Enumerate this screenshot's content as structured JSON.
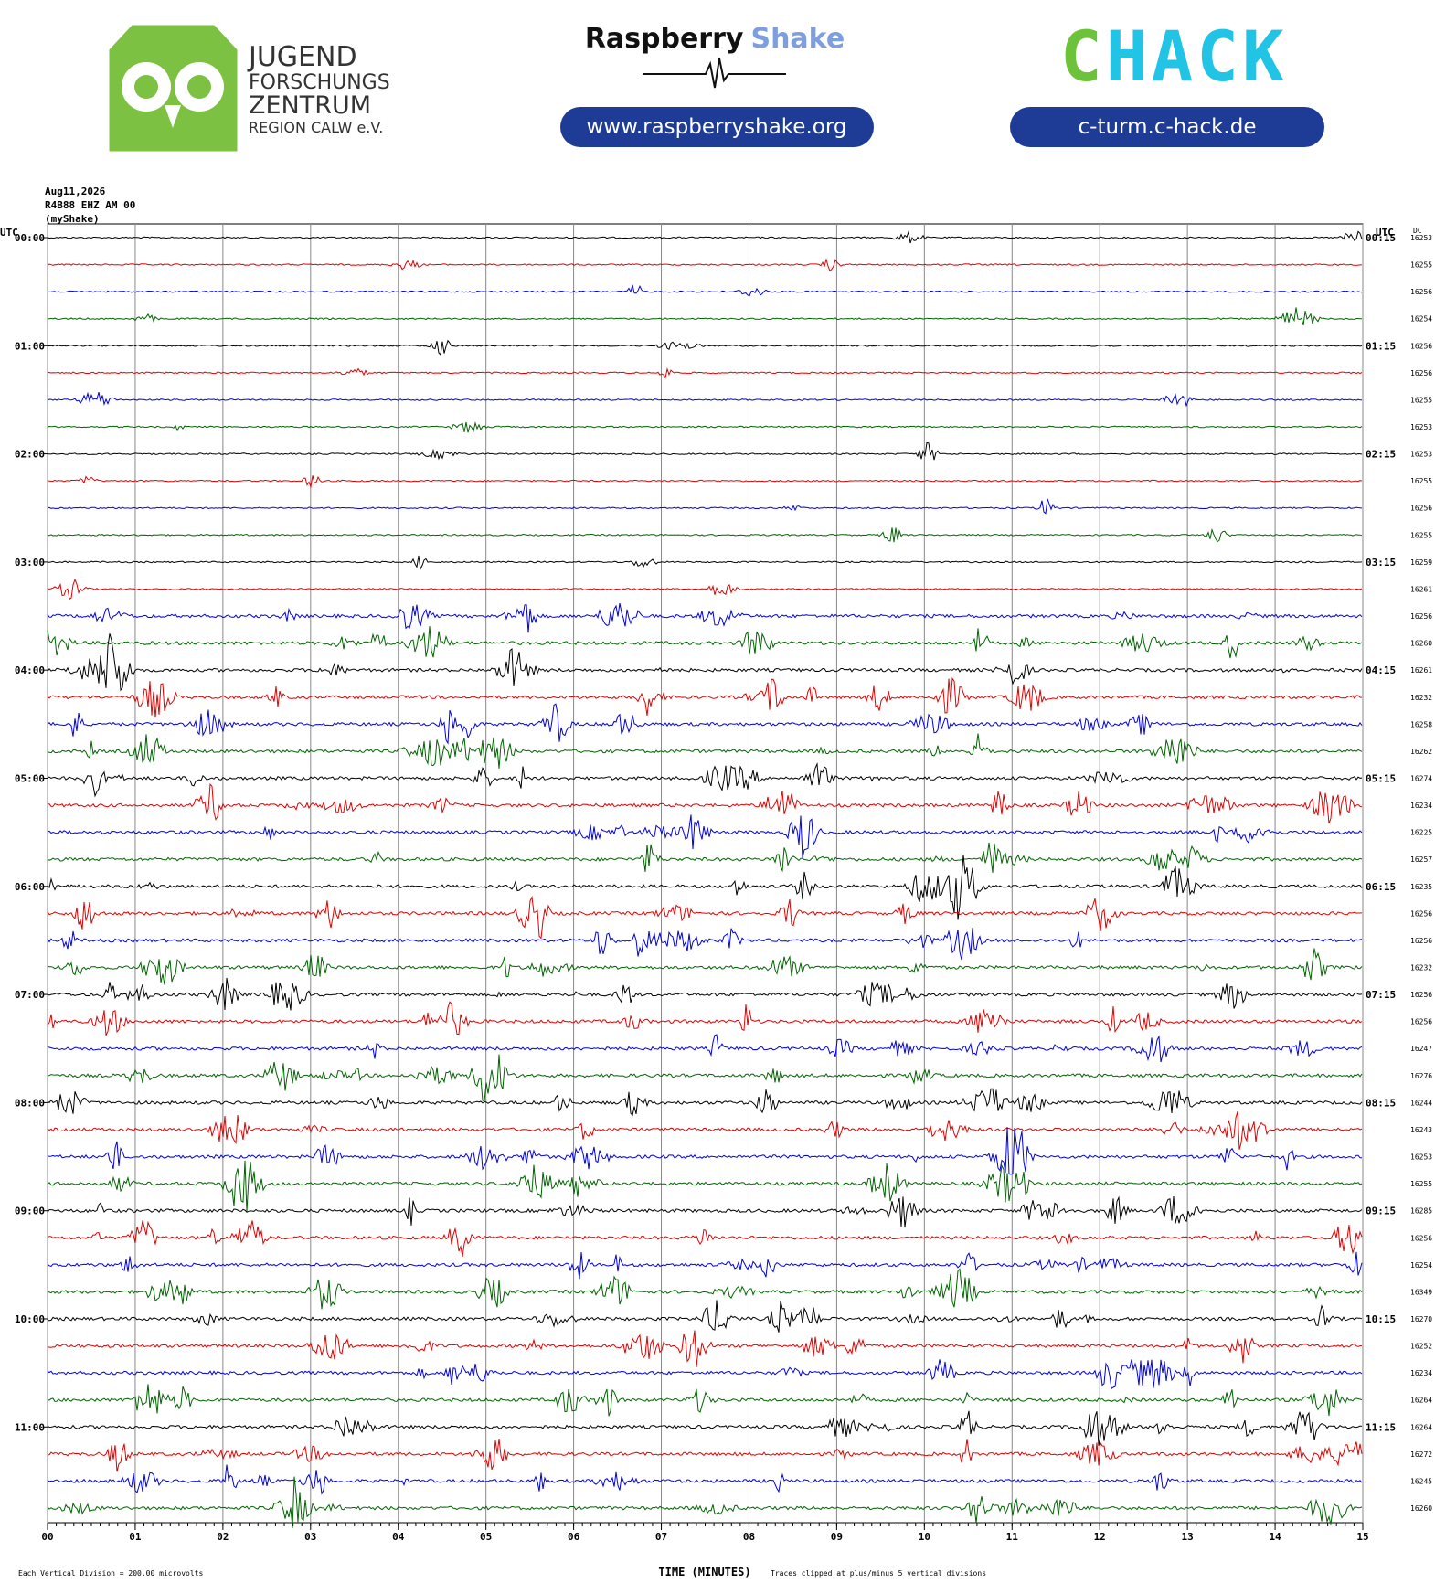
{
  "header": {
    "jfz_lines": [
      "JUGEND",
      "FORSCHUNGS",
      "ZENTRUM",
      "REGION CALW e.V."
    ],
    "rs_name": "Raspberry",
    "rs_name2": "Shake",
    "rs_url": "www.raspberryshake.org",
    "chack_c": "C",
    "chack_rest": "HACK",
    "chack_url": "c-turm.c-hack.de"
  },
  "chart_data": {
    "type": "helicorder",
    "info": [
      "Aug11,2026",
      "R4B88 EHZ AM 00",
      "(myShake)"
    ],
    "left_axis_label": "UTC",
    "right_axis_label": "UTC",
    "dc_label": "DC",
    "left_times": [
      "00:00",
      "01:00",
      "02:00",
      "03:00",
      "04:00",
      "05:00",
      "06:00",
      "07:00",
      "08:00",
      "09:00",
      "10:00",
      "11:00"
    ],
    "right_times": [
      "00:15",
      "01:15",
      "02:15",
      "03:15",
      "04:15",
      "05:15",
      "06:15",
      "07:15",
      "08:15",
      "09:15",
      "10:15",
      "11:15"
    ],
    "dc": [
      16253,
      16255,
      16256,
      16254,
      16256,
      16256,
      16255,
      16253,
      16253,
      16255,
      16256,
      16255,
      16259,
      16261,
      16256,
      16260,
      16261,
      16232,
      16258,
      16262,
      16274,
      16234,
      16225,
      16257,
      16235,
      16256,
      16256,
      16232,
      16256,
      16256,
      16247,
      16276,
      16244,
      16243,
      16253,
      16255,
      16285,
      16256,
      16254,
      16349,
      16270,
      16252,
      16234,
      16264,
      16264,
      16272,
      16245,
      16260
    ],
    "trace_colors": [
      "#000000",
      "#e00000",
      "#0000e0",
      "#006400"
    ],
    "xlim": [
      0,
      15
    ],
    "xticks": [
      {
        "value": 0,
        "label": "00"
      },
      {
        "value": 1,
        "label": "01"
      },
      {
        "value": 2,
        "label": "02"
      },
      {
        "value": 3,
        "label": "03"
      },
      {
        "value": 4,
        "label": "04"
      },
      {
        "value": 5,
        "label": "05"
      },
      {
        "value": 6,
        "label": "06"
      },
      {
        "value": 7,
        "label": "07"
      },
      {
        "value": 8,
        "label": "08"
      },
      {
        "value": 9,
        "label": "09"
      },
      {
        "value": 10,
        "label": "10"
      },
      {
        "value": 11,
        "label": "11"
      },
      {
        "value": 12,
        "label": "12"
      },
      {
        "value": 13,
        "label": "13"
      },
      {
        "value": 14,
        "label": "14"
      },
      {
        "value": 15,
        "label": "15"
      }
    ],
    "xlabel": "TIME (MINUTES)",
    "footnote_left": "Each Vertical Division =  200.00 microvolts",
    "footnote_right": "Traces clipped at plus/minus 5 vertical divisions",
    "grid": true
  }
}
